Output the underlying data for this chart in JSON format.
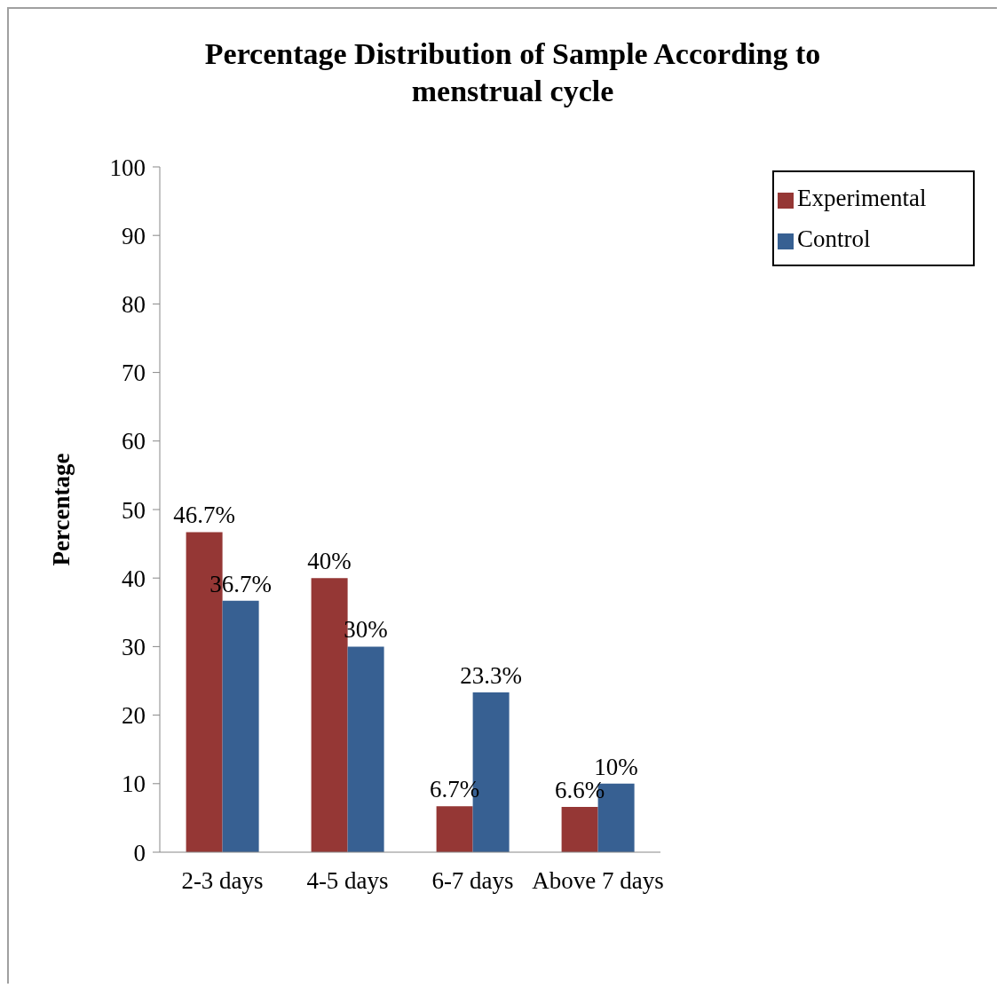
{
  "chart_data": {
    "type": "bar",
    "title": "Percentage Distribution of Sample According to menstrual cycle",
    "ylabel": "Percentage",
    "categories": [
      "2-3 days",
      "4-5 days",
      "6-7 days",
      "Above 7 days"
    ],
    "series": [
      {
        "name": "Experimental",
        "color": "#953735",
        "values": [
          46.7,
          40,
          6.7,
          6.6
        ],
        "value_labels": [
          "46.7%",
          "40%",
          "6.7%",
          "6.6%"
        ]
      },
      {
        "name": "Control",
        "color": "#376092",
        "values": [
          36.7,
          30,
          23.3,
          10
        ],
        "value_labels": [
          "36.7%",
          "30%",
          "23.3%",
          "10%"
        ]
      }
    ],
    "ylim": [
      0,
      100
    ],
    "yticks": [
      0,
      10,
      20,
      30,
      40,
      50,
      60,
      70,
      80,
      90,
      100
    ],
    "grid": false,
    "legend": "top right"
  }
}
